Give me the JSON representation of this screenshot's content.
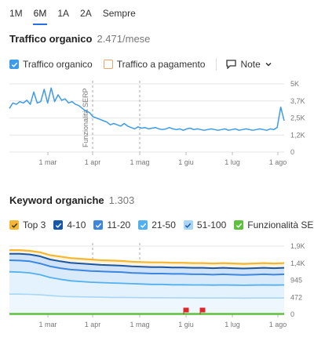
{
  "period_tabs": [
    "1M",
    "6M",
    "1A",
    "2A",
    "Sempre"
  ],
  "active_tab": "6M",
  "traffic": {
    "title": "Traffico organico",
    "value": "2.471/mese",
    "legend": {
      "organic": "Traffico organico",
      "paid": "Traffico a pagamento",
      "notes": "Note"
    },
    "annotation": "Funzionalità SERP",
    "chart_data": {
      "type": "line",
      "y_ticks": [
        "5K",
        "3,7K",
        "2,5K",
        "1,2K",
        "0"
      ],
      "x_ticks": [
        "1 mar",
        "1 apr",
        "1 mag",
        "1 giu",
        "1 lug",
        "1 ago"
      ],
      "ylim": [
        0,
        5000
      ],
      "series": [
        {
          "name": "Traffico organico",
          "color": "#3d9be9",
          "values": [
            3200,
            3600,
            3500,
            3700,
            3600,
            3800,
            3500,
            4400,
            3600,
            3700,
            4600,
            3600,
            4700,
            3700,
            4200,
            3800,
            3900,
            3600,
            3700,
            3500,
            3400,
            3200,
            3000,
            2900,
            2600,
            2500,
            2400,
            2300,
            2200,
            2000,
            2100,
            2000,
            1900,
            2100,
            1900,
            1800,
            1700,
            1850,
            1750,
            1800,
            1700,
            1750,
            1800,
            1700,
            1650,
            1700,
            1800,
            1700,
            1650,
            1700,
            1600,
            1700,
            1750,
            1650,
            1700,
            1650,
            1600,
            1650,
            1700,
            1650,
            1600,
            1650,
            1700,
            1600,
            1650,
            1700,
            1600,
            1650,
            1700,
            1650,
            1600,
            1650,
            1700,
            1650,
            1600,
            1700,
            1650,
            1800,
            3300,
            2300
          ]
        }
      ]
    }
  },
  "keywords": {
    "title": "Keyword organiche",
    "value": "1.303",
    "legend": [
      {
        "label": "Top 3",
        "color": "#f5b731"
      },
      {
        "label": "4-10",
        "color": "#1857a6"
      },
      {
        "label": "11-20",
        "color": "#3a86e0"
      },
      {
        "label": "21-50",
        "color": "#52b0ee"
      },
      {
        "label": "51-100",
        "color": "#a9d6f6"
      },
      {
        "label": "Funzionalità SERP",
        "color": "#5fbf3f"
      }
    ],
    "chart_data": {
      "type": "area",
      "y_ticks": [
        "1,9K",
        "1,4K",
        "945",
        "472",
        "0"
      ],
      "x_ticks": [
        "1 mar",
        "1 apr",
        "1 mag",
        "1 giu",
        "1 lug",
        "1 ago"
      ],
      "ylim": [
        0,
        1890
      ],
      "series": [
        {
          "name": "Top 3",
          "values": [
            1780,
            1780,
            1760,
            1720,
            1640,
            1600,
            1560,
            1540,
            1520,
            1500,
            1490,
            1480,
            1460,
            1450,
            1440,
            1440,
            1430,
            1430,
            1420,
            1420,
            1410,
            1420,
            1410,
            1400,
            1410,
            1420,
            1410,
            1420
          ]
        },
        {
          "name": "4-10",
          "values": [
            1680,
            1680,
            1660,
            1610,
            1520,
            1470,
            1430,
            1410,
            1390,
            1370,
            1360,
            1350,
            1330,
            1320,
            1310,
            1310,
            1300,
            1300,
            1290,
            1290,
            1280,
            1290,
            1280,
            1270,
            1280,
            1290,
            1280,
            1290
          ]
        },
        {
          "name": "11-20",
          "values": [
            1500,
            1490,
            1470,
            1410,
            1330,
            1280,
            1240,
            1220,
            1200,
            1190,
            1180,
            1170,
            1150,
            1140,
            1130,
            1130,
            1120,
            1120,
            1110,
            1110,
            1100,
            1110,
            1100,
            1090,
            1100,
            1110,
            1100,
            1110
          ]
        },
        {
          "name": "21-50",
          "values": [
            1180,
            1170,
            1150,
            1100,
            1020,
            970,
            930,
            910,
            890,
            880,
            870,
            860,
            850,
            840,
            830,
            830,
            820,
            820,
            815,
            815,
            810,
            815,
            810,
            805,
            810,
            815,
            810,
            815
          ]
        },
        {
          "name": "51-100",
          "values": [
            560,
            560,
            555,
            540,
            520,
            500,
            490,
            485,
            480,
            475,
            470,
            470,
            465,
            462,
            460,
            460,
            458,
            458,
            455,
            455,
            452,
            454,
            452,
            450,
            452,
            455,
            452,
            455
          ]
        },
        {
          "name": "Funzionalità SERP",
          "values": [
            10,
            10,
            10,
            10,
            10,
            10,
            10,
            10,
            10,
            10,
            10,
            10,
            10,
            10,
            10,
            10,
            10,
            10,
            10,
            10,
            10,
            10,
            10,
            10,
            10,
            10,
            10,
            10
          ]
        }
      ]
    }
  },
  "colors": {
    "accent": "#2a6fdb",
    "organic": "#3d9be9",
    "paid_border": "#e8a46a",
    "serp_flag": "#e0262d"
  }
}
